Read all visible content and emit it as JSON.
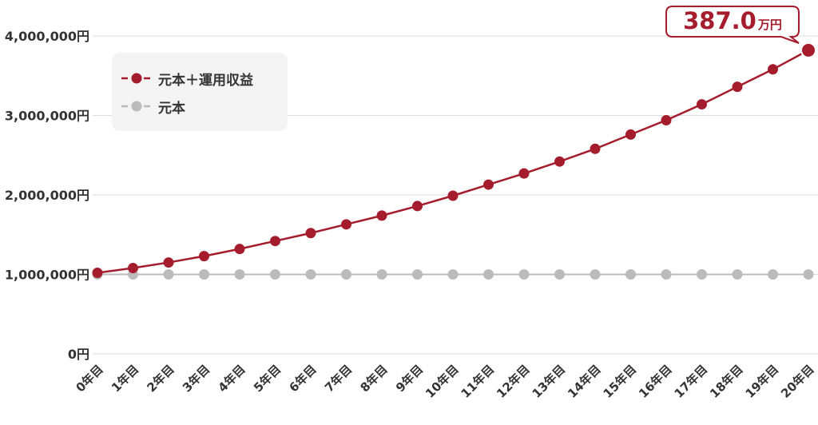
{
  "colors": {
    "accent": "#a51d2d",
    "principal": "#bbbbbb",
    "grid": "#dddddd",
    "text": "#333333",
    "legend_bg": "#f4f4f4"
  },
  "legend": {
    "series1_label": "元本＋運用収益",
    "series2_label": "元本"
  },
  "callout": {
    "value": "387.0",
    "unit": "万円"
  },
  "chart_data": {
    "type": "line",
    "categories": [
      "0年目",
      "1年目",
      "2年目",
      "3年目",
      "4年目",
      "5年目",
      "6年目",
      "7年目",
      "8年目",
      "9年目",
      "10年目",
      "11年目",
      "12年目",
      "13年目",
      "14年目",
      "15年目",
      "16年目",
      "17年目",
      "18年目",
      "19年目",
      "20年目"
    ],
    "y_ticks": [
      "0円",
      "1,000,000円",
      "2,000,000円",
      "3,000,000円",
      "4,000,000円"
    ],
    "ylim": [
      0,
      4000000
    ],
    "grid": true,
    "legend_position": "top-left",
    "series": [
      {
        "name": "元本＋運用収益",
        "color": "#a51d2d",
        "values": [
          1020000,
          1080000,
          1150000,
          1230000,
          1320000,
          1420000,
          1520000,
          1630000,
          1740000,
          1860000,
          1990000,
          2130000,
          2270000,
          2420000,
          2580000,
          2760000,
          2940000,
          3140000,
          3360000,
          3580000,
          3820000
        ]
      },
      {
        "name": "元本",
        "color": "#bbbbbb",
        "values": [
          1000000,
          1000000,
          1000000,
          1000000,
          1000000,
          1000000,
          1000000,
          1000000,
          1000000,
          1000000,
          1000000,
          1000000,
          1000000,
          1000000,
          1000000,
          1000000,
          1000000,
          1000000,
          1000000,
          1000000,
          1000000
        ]
      }
    ]
  }
}
